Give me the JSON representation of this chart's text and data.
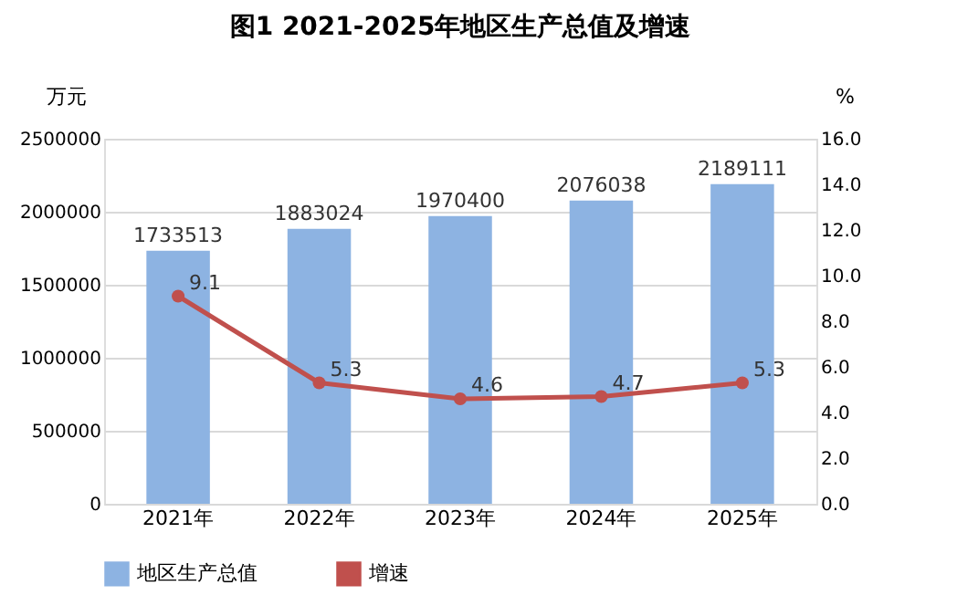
{
  "chart_data": {
    "type": "bar",
    "title": "图1    2021-2025年地区生产总值及增速",
    "ylabel": "万元",
    "y2label": "%",
    "categories": [
      "2021年",
      "2022年",
      "2023年",
      "2024年",
      "2025年"
    ],
    "series": [
      {
        "name": "地区生产总值",
        "color": "#8db3e2",
        "values": [
          1733513,
          1883024,
          1970400,
          2076038,
          2189111
        ]
      },
      {
        "name": "增速",
        "type": "line",
        "axis": "y2",
        "color": "#c0504d",
        "values": [
          9.1,
          5.3,
          4.6,
          4.7,
          5.3
        ]
      }
    ],
    "ylim": [
      0,
      2500000
    ],
    "yticks": [
      0,
      500000,
      1000000,
      1500000,
      2000000,
      2500000
    ],
    "y2lim": [
      0,
      16
    ],
    "y2ticks": [
      {
        "value": 0,
        "label": "0.0"
      },
      {
        "value": 2,
        "label": "2.0"
      },
      {
        "value": 4,
        "label": "4.0"
      },
      {
        "value": 6,
        "label": "6.0"
      },
      {
        "value": 8,
        "label": "8.0"
      },
      {
        "value": 10,
        "label": "10.0"
      },
      {
        "value": 12,
        "label": "12.0"
      },
      {
        "value": 14,
        "label": "14.0"
      },
      {
        "value": 16,
        "label": "16.0"
      }
    ],
    "grid": "y",
    "legend": "bottom",
    "marker": "circle",
    "line_style": "solid",
    "data_labels": true
  }
}
